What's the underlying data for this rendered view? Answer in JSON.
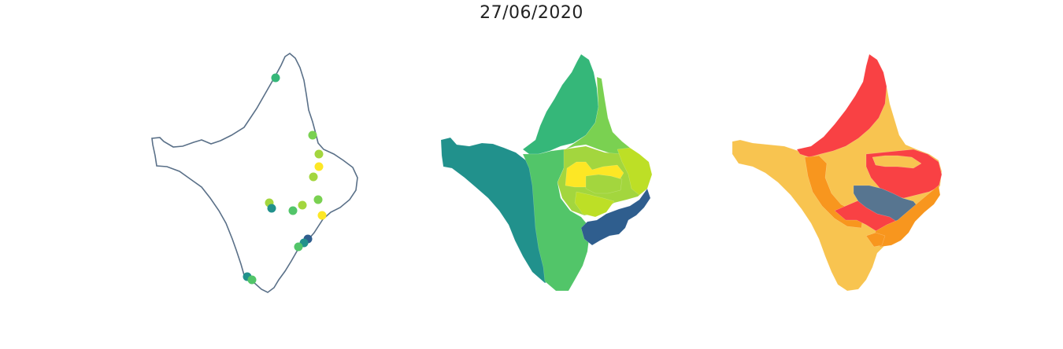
{
  "title": "27/06/2020",
  "colors": {
    "outline": "#5a7088",
    "viridis": [
      "#2f5e8e",
      "#21918c",
      "#35b779",
      "#52c569",
      "#7ad151",
      "#a3d63e",
      "#bddf26",
      "#fde725"
    ],
    "risk": {
      "low": "#f8c450",
      "medium": "#f8961e",
      "high": "#f94144",
      "special": "#577590"
    }
  },
  "panels": [
    {
      "name": "points-map",
      "type": "point-map"
    },
    {
      "name": "choropleth-viridis",
      "type": "choropleth"
    },
    {
      "name": "choropleth-risk",
      "type": "choropleth"
    }
  ]
}
